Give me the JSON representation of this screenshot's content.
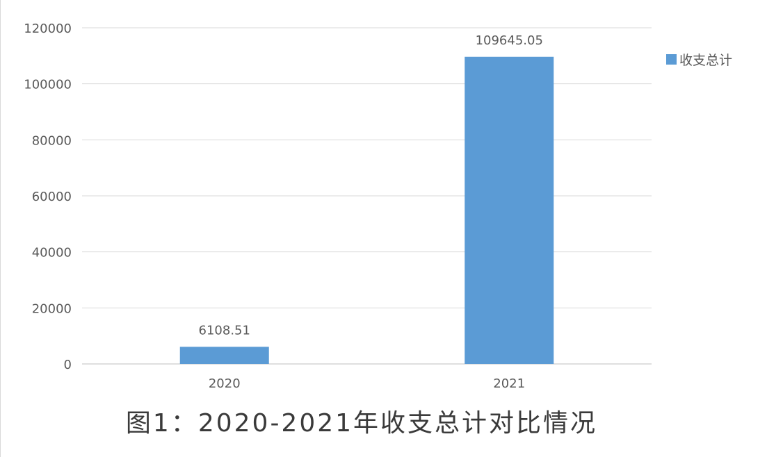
{
  "colors": {
    "bar": "#5b9bd5",
    "grid": "#d9d9d9",
    "axis": "#bfbfbf",
    "text": "#595959"
  },
  "chart_data": {
    "type": "bar",
    "categories": [
      "2020",
      "2021"
    ],
    "series": [
      {
        "name": "收支总计",
        "values": [
          6108.51,
          109645.05
        ]
      }
    ],
    "data_labels": [
      "6108.51",
      "109645.05"
    ],
    "ylim": [
      0,
      120000
    ],
    "yticks": [
      "0",
      "20000",
      "40000",
      "60000",
      "80000",
      "100000",
      "120000"
    ],
    "grid": true,
    "legend_position": "right"
  },
  "caption": "图1：2020-2021年收支总计对比情况"
}
